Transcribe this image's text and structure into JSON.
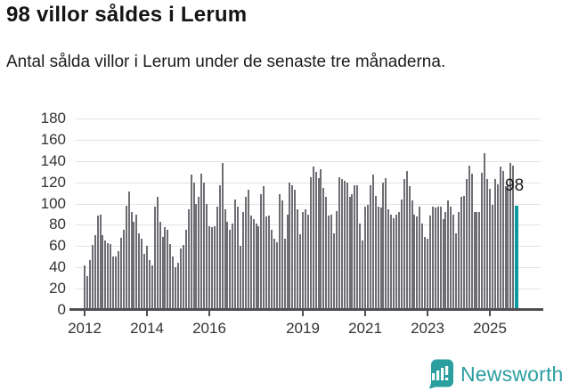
{
  "header": {
    "title": "98 villor såldes i Lerum",
    "subtitle": "Antal sålda villor i Lerum under de senaste tre månaderna."
  },
  "chart_data": {
    "type": "bar",
    "title": "98 villor såldes i Lerum",
    "subtitle": "Antal sålda villor i Lerum under de senaste tre månaderna.",
    "ylabel": "",
    "xlabel": "",
    "ylim": [
      0,
      180
    ],
    "yticks": [
      0,
      20,
      40,
      60,
      80,
      100,
      120,
      140,
      160,
      180
    ],
    "x_tick_labels": [
      "2012",
      "2014",
      "2016",
      "2019",
      "2021",
      "2023",
      "2025"
    ],
    "grid": true,
    "frequency": "monthly",
    "period_start": "2012-01",
    "period_end": "2025-11",
    "bar_color": "#6d6d73",
    "highlight": {
      "index": 166,
      "value": 98,
      "label": "98",
      "color": "#0b9b9d"
    },
    "values": [
      42,
      32,
      47,
      61,
      70,
      89,
      90,
      70,
      65,
      63,
      62,
      50,
      50,
      55,
      68,
      75,
      98,
      111,
      92,
      83,
      90,
      72,
      67,
      53,
      60,
      47,
      42,
      97,
      106,
      83,
      69,
      78,
      75,
      62,
      50,
      40,
      44,
      58,
      61,
      75,
      95,
      127,
      120,
      100,
      106,
      128,
      120,
      100,
      79,
      78,
      79,
      97,
      117,
      138,
      95,
      83,
      75,
      81,
      104,
      97,
      60,
      92,
      106,
      113,
      89,
      85,
      81,
      79,
      109,
      116,
      88,
      89,
      75,
      67,
      64,
      109,
      103,
      67,
      90,
      120,
      117,
      113,
      95,
      71,
      92,
      95,
      90,
      125,
      135,
      130,
      124,
      132,
      115,
      106,
      89,
      90,
      72,
      93,
      125,
      123,
      121,
      120,
      106,
      109,
      117,
      117,
      81,
      65,
      97,
      99,
      117,
      127,
      107,
      97,
      96,
      120,
      124,
      95,
      90,
      86,
      90,
      92,
      104,
      123,
      131,
      116,
      103,
      90,
      88,
      97,
      81,
      69,
      67,
      89,
      97,
      96,
      97,
      97,
      85,
      92,
      103,
      97,
      90,
      72,
      92,
      106,
      107,
      123,
      136,
      128,
      92,
      92,
      92,
      129,
      147,
      123,
      114,
      99,
      123,
      118,
      135,
      131,
      116,
      118,
      138,
      136,
      98
    ]
  },
  "annotation": {
    "last_value_label": "98"
  },
  "footer": {
    "brand": "Newsworthy",
    "brand_color": "#2b9ea0",
    "logo_icon": "newsworthy-speech-bubble-chart-icon"
  }
}
